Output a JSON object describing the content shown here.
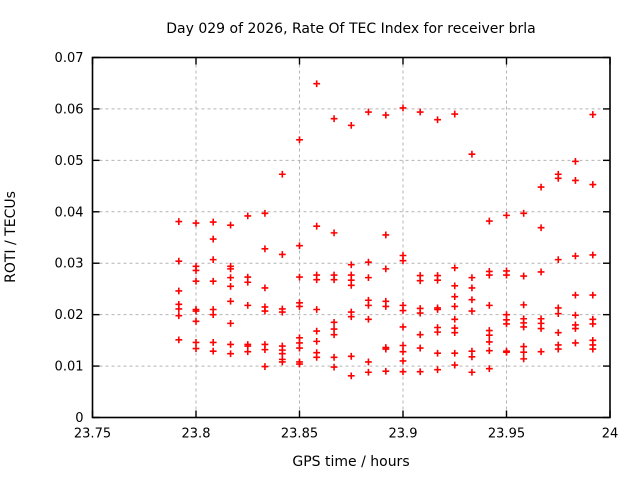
{
  "chart_data": {
    "type": "scatter",
    "title": "Day 029 of 2026, Rate Of TEC Index for receiver brla",
    "xlabel": "GPS time / hours",
    "ylabel": "ROTI / TECUs",
    "xlim": [
      23.75,
      24
    ],
    "ylim": [
      0,
      0.07
    ],
    "xticks": [
      23.75,
      23.8,
      23.85,
      23.9,
      23.95,
      24
    ],
    "xtick_labels": [
      "23.75",
      "23.8",
      "23.85",
      "23.9",
      "23.95",
      "24"
    ],
    "yticks": [
      0,
      0.01,
      0.02,
      0.03,
      0.04,
      0.05,
      0.06,
      0.07
    ],
    "ytick_labels": [
      "0",
      "0.01",
      "0.02",
      "0.03",
      "0.04",
      "0.05",
      "0.06",
      "0.07"
    ],
    "grid": true,
    "legend": "none",
    "marker": "plus",
    "marker_color": "#ff0000",
    "grid_color": "#b4b4b4",
    "axis_color": "#000000",
    "series": [
      {
        "name": "roti",
        "points": [
          [
            23.7917,
            0.0381
          ],
          [
            23.7917,
            0.0304
          ],
          [
            23.7917,
            0.0246
          ],
          [
            23.7917,
            0.022
          ],
          [
            23.7917,
            0.0211
          ],
          [
            23.7917,
            0.0198
          ],
          [
            23.7917,
            0.0151
          ],
          [
            23.8,
            0.0378
          ],
          [
            23.8,
            0.0294
          ],
          [
            23.8,
            0.0286
          ],
          [
            23.8,
            0.0265
          ],
          [
            23.8,
            0.021
          ],
          [
            23.8,
            0.0207
          ],
          [
            23.8,
            0.0187
          ],
          [
            23.8,
            0.0146
          ],
          [
            23.8,
            0.0134
          ],
          [
            23.8083,
            0.038
          ],
          [
            23.8083,
            0.0347
          ],
          [
            23.8083,
            0.0307
          ],
          [
            23.8083,
            0.0265
          ],
          [
            23.8083,
            0.021
          ],
          [
            23.8083,
            0.02
          ],
          [
            23.8083,
            0.0146
          ],
          [
            23.8083,
            0.0129
          ],
          [
            23.8167,
            0.0374
          ],
          [
            23.8167,
            0.0294
          ],
          [
            23.8167,
            0.0289
          ],
          [
            23.8167,
            0.0272
          ],
          [
            23.8167,
            0.0255
          ],
          [
            23.8167,
            0.0226
          ],
          [
            23.8167,
            0.0183
          ],
          [
            23.8167,
            0.0142
          ],
          [
            23.8167,
            0.0124
          ],
          [
            23.825,
            0.0392
          ],
          [
            23.825,
            0.0273
          ],
          [
            23.825,
            0.0263
          ],
          [
            23.825,
            0.0218
          ],
          [
            23.825,
            0.0142
          ],
          [
            23.825,
            0.0139
          ],
          [
            23.825,
            0.0128
          ],
          [
            23.8333,
            0.0397
          ],
          [
            23.8333,
            0.0328
          ],
          [
            23.8333,
            0.0252
          ],
          [
            23.8333,
            0.0215
          ],
          [
            23.8333,
            0.0207
          ],
          [
            23.8333,
            0.0142
          ],
          [
            23.8333,
            0.0132
          ],
          [
            23.8333,
            0.0099
          ],
          [
            23.8417,
            0.0473
          ],
          [
            23.8417,
            0.0317
          ],
          [
            23.8417,
            0.0211
          ],
          [
            23.8417,
            0.0205
          ],
          [
            23.8417,
            0.0139
          ],
          [
            23.8417,
            0.0131
          ],
          [
            23.8417,
            0.0124
          ],
          [
            23.8417,
            0.0113
          ],
          [
            23.8417,
            0.0108
          ],
          [
            23.85,
            0.054
          ],
          [
            23.85,
            0.0334
          ],
          [
            23.85,
            0.0273
          ],
          [
            23.85,
            0.0223
          ],
          [
            23.85,
            0.0216
          ],
          [
            23.85,
            0.0155
          ],
          [
            23.85,
            0.0145
          ],
          [
            23.85,
            0.0135
          ],
          [
            23.85,
            0.0108
          ],
          [
            23.85,
            0.0104
          ],
          [
            23.8583,
            0.0649
          ],
          [
            23.8583,
            0.0372
          ],
          [
            23.8583,
            0.0277
          ],
          [
            23.8583,
            0.0268
          ],
          [
            23.8583,
            0.021
          ],
          [
            23.8583,
            0.0168
          ],
          [
            23.8583,
            0.0148
          ],
          [
            23.8583,
            0.0126
          ],
          [
            23.8583,
            0.0117
          ],
          [
            23.8667,
            0.0581
          ],
          [
            23.8667,
            0.0359
          ],
          [
            23.8667,
            0.0277
          ],
          [
            23.8667,
            0.0268
          ],
          [
            23.8667,
            0.0185
          ],
          [
            23.8667,
            0.0172
          ],
          [
            23.8667,
            0.0161
          ],
          [
            23.8667,
            0.0117
          ],
          [
            23.8667,
            0.0098
          ],
          [
            23.875,
            0.0568
          ],
          [
            23.875,
            0.0297
          ],
          [
            23.875,
            0.0277
          ],
          [
            23.875,
            0.0267
          ],
          [
            23.875,
            0.0257
          ],
          [
            23.875,
            0.0205
          ],
          [
            23.875,
            0.0196
          ],
          [
            23.875,
            0.0119
          ],
          [
            23.875,
            0.0081
          ],
          [
            23.8833,
            0.0594
          ],
          [
            23.8833,
            0.0302
          ],
          [
            23.8833,
            0.0272
          ],
          [
            23.8833,
            0.0228
          ],
          [
            23.8833,
            0.0218
          ],
          [
            23.8833,
            0.0191
          ],
          [
            23.8833,
            0.0108
          ],
          [
            23.8833,
            0.0088
          ],
          [
            23.8917,
            0.0588
          ],
          [
            23.8917,
            0.0355
          ],
          [
            23.8917,
            0.0289
          ],
          [
            23.8917,
            0.0226
          ],
          [
            23.8917,
            0.0216
          ],
          [
            23.8917,
            0.0136
          ],
          [
            23.8917,
            0.0133
          ],
          [
            23.8917,
            0.009
          ],
          [
            23.9,
            0.0602
          ],
          [
            23.9,
            0.0315
          ],
          [
            23.9,
            0.0305
          ],
          [
            23.9,
            0.0218
          ],
          [
            23.9,
            0.0208
          ],
          [
            23.9,
            0.0176
          ],
          [
            23.9,
            0.014
          ],
          [
            23.9,
            0.0128
          ],
          [
            23.9,
            0.011
          ],
          [
            23.9,
            0.0089
          ],
          [
            23.9083,
            0.0594
          ],
          [
            23.9083,
            0.0276
          ],
          [
            23.9083,
            0.0266
          ],
          [
            23.9083,
            0.0212
          ],
          [
            23.9083,
            0.0203
          ],
          [
            23.9083,
            0.0161
          ],
          [
            23.9083,
            0.0135
          ],
          [
            23.9083,
            0.0089
          ],
          [
            23.9167,
            0.0579
          ],
          [
            23.9167,
            0.0276
          ],
          [
            23.9167,
            0.0267
          ],
          [
            23.9167,
            0.0213
          ],
          [
            23.9167,
            0.021
          ],
          [
            23.9167,
            0.0175
          ],
          [
            23.9167,
            0.0166
          ],
          [
            23.9167,
            0.0125
          ],
          [
            23.9167,
            0.0093
          ],
          [
            23.925,
            0.059
          ],
          [
            23.925,
            0.0291
          ],
          [
            23.925,
            0.0256
          ],
          [
            23.925,
            0.0235
          ],
          [
            23.925,
            0.0216
          ],
          [
            23.925,
            0.0191
          ],
          [
            23.925,
            0.0174
          ],
          [
            23.925,
            0.0165
          ],
          [
            23.925,
            0.0125
          ],
          [
            23.925,
            0.0102
          ],
          [
            23.9333,
            0.0512
          ],
          [
            23.9333,
            0.0272
          ],
          [
            23.9333,
            0.0252
          ],
          [
            23.9333,
            0.0229
          ],
          [
            23.9333,
            0.0207
          ],
          [
            23.9333,
            0.0129
          ],
          [
            23.9333,
            0.0118
          ],
          [
            23.9333,
            0.0088
          ],
          [
            23.9417,
            0.0382
          ],
          [
            23.9417,
            0.0284
          ],
          [
            23.9417,
            0.0277
          ],
          [
            23.9417,
            0.0218
          ],
          [
            23.9417,
            0.0169
          ],
          [
            23.9417,
            0.016
          ],
          [
            23.9417,
            0.0147
          ],
          [
            23.9417,
            0.013
          ],
          [
            23.9417,
            0.0095
          ],
          [
            23.95,
            0.0393
          ],
          [
            23.95,
            0.0285
          ],
          [
            23.95,
            0.0277
          ],
          [
            23.95,
            0.02
          ],
          [
            23.95,
            0.019
          ],
          [
            23.95,
            0.0182
          ],
          [
            23.95,
            0.0129
          ],
          [
            23.95,
            0.0127
          ],
          [
            23.9583,
            0.0397
          ],
          [
            23.9583,
            0.0275
          ],
          [
            23.9583,
            0.0219
          ],
          [
            23.9583,
            0.0192
          ],
          [
            23.9583,
            0.0184
          ],
          [
            23.9583,
            0.0176
          ],
          [
            23.9583,
            0.0138
          ],
          [
            23.9583,
            0.0127
          ],
          [
            23.9583,
            0.0114
          ],
          [
            23.9667,
            0.0448
          ],
          [
            23.9667,
            0.0369
          ],
          [
            23.9667,
            0.0283
          ],
          [
            23.9667,
            0.0192
          ],
          [
            23.9667,
            0.0183
          ],
          [
            23.9667,
            0.0173
          ],
          [
            23.9667,
            0.0128
          ],
          [
            23.975,
            0.0473
          ],
          [
            23.975,
            0.0465
          ],
          [
            23.975,
            0.0307
          ],
          [
            23.975,
            0.0213
          ],
          [
            23.975,
            0.0202
          ],
          [
            23.975,
            0.0165
          ],
          [
            23.975,
            0.0141
          ],
          [
            23.975,
            0.0133
          ],
          [
            23.9833,
            0.0498
          ],
          [
            23.9833,
            0.0461
          ],
          [
            23.9833,
            0.0314
          ],
          [
            23.9833,
            0.0238
          ],
          [
            23.9833,
            0.0199
          ],
          [
            23.9833,
            0.018
          ],
          [
            23.9833,
            0.0173
          ],
          [
            23.9833,
            0.0145
          ],
          [
            23.9917,
            0.0589
          ],
          [
            23.9917,
            0.0453
          ],
          [
            23.9917,
            0.0316
          ],
          [
            23.9917,
            0.0238
          ],
          [
            23.9917,
            0.0191
          ],
          [
            23.9917,
            0.0182
          ],
          [
            23.9917,
            0.015
          ],
          [
            23.9917,
            0.0141
          ],
          [
            23.9917,
            0.0133
          ]
        ]
      }
    ]
  }
}
